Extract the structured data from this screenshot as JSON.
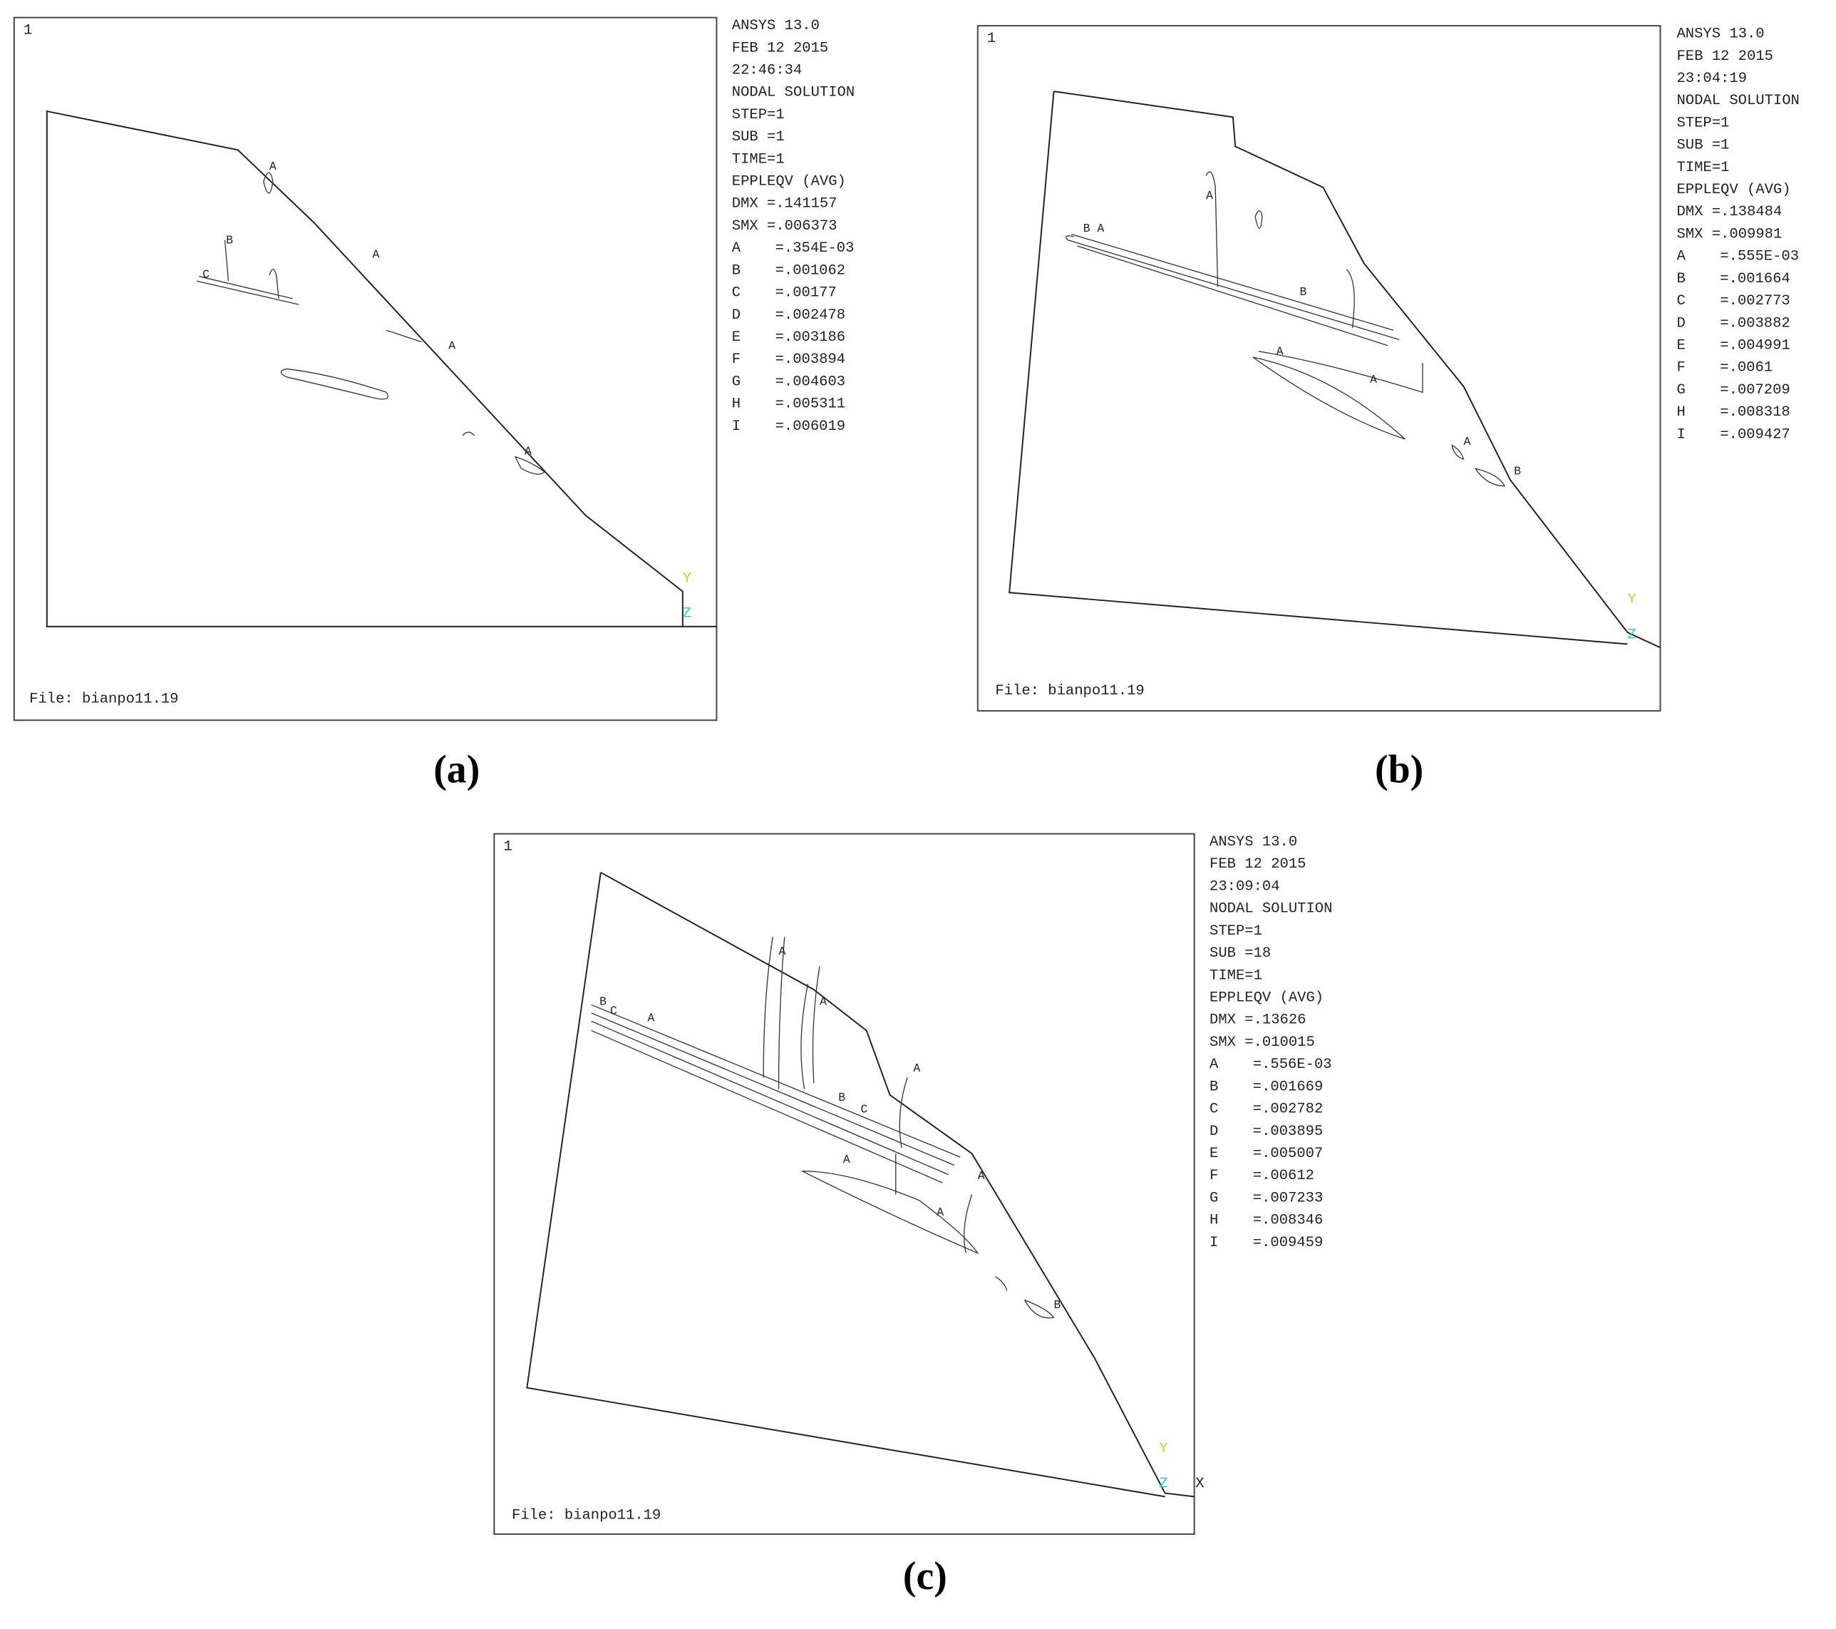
{
  "panels": [
    {
      "corner": "1",
      "info": [
        "ANSYS 13.0",
        "FEB 12 2015",
        "22:46:34",
        "NODAL SOLUTION",
        "STEP=1",
        "SUB =1",
        "TIME=1",
        "EPPLEQV  (AVG)",
        "DMX =.141157",
        "SMX =.006373"
      ],
      "legend": [
        {
          "key": "A",
          "value": "=.354E-03"
        },
        {
          "key": "B",
          "value": "=.001062"
        },
        {
          "key": "C",
          "value": "=.00177"
        },
        {
          "key": "D",
          "value": "=.002478"
        },
        {
          "key": "E",
          "value": "=.003186"
        },
        {
          "key": "F",
          "value": "=.003894"
        },
        {
          "key": "G",
          "value": "=.004603"
        },
        {
          "key": "H",
          "value": "=.005311"
        },
        {
          "key": "I",
          "value": "=.006019"
        }
      ],
      "axes": [
        "Y",
        "Z"
      ],
      "contour_labels": [
        "A",
        "A",
        "B",
        "C",
        "A",
        "A"
      ],
      "file": "File: bianpo11.19",
      "caption": "(a)"
    },
    {
      "corner": "1",
      "info": [
        "ANSYS 13.0",
        "FEB 12 2015",
        "23:04:19",
        "NODAL SOLUTION",
        "STEP=1",
        "SUB =1",
        "TIME=1",
        "EPPLEQV  (AVG)",
        "DMX =.138484",
        "SMX =.009981"
      ],
      "legend": [
        {
          "key": "A",
          "value": "=.555E-03"
        },
        {
          "key": "B",
          "value": "=.001664"
        },
        {
          "key": "C",
          "value": "=.002773"
        },
        {
          "key": "D",
          "value": "=.003882"
        },
        {
          "key": "E",
          "value": "=.004991"
        },
        {
          "key": "F",
          "value": "=.0061"
        },
        {
          "key": "G",
          "value": "=.007209"
        },
        {
          "key": "H",
          "value": "=.008318"
        },
        {
          "key": "I",
          "value": "=.009427"
        }
      ],
      "axes": [
        "Y",
        "Z"
      ],
      "contour_labels": [
        "B",
        "A",
        "A",
        "B",
        "A",
        "A",
        "B",
        "A"
      ],
      "file": "File: bianpo11.19",
      "caption": "(b)"
    },
    {
      "corner": "1",
      "info": [
        "ANSYS 13.0",
        "FEB 12 2015",
        "23:09:04",
        "NODAL SOLUTION",
        "STEP=1",
        "SUB =18",
        "TIME=1",
        "EPPLEQV  (AVG)",
        "DMX =.13626",
        "SMX =.010015"
      ],
      "legend": [
        {
          "key": "A",
          "value": "=.556E-03"
        },
        {
          "key": "B",
          "value": "=.001669"
        },
        {
          "key": "C",
          "value": "=.002782"
        },
        {
          "key": "D",
          "value": "=.003895"
        },
        {
          "key": "E",
          "value": "=.005007"
        },
        {
          "key": "F",
          "value": "=.00612"
        },
        {
          "key": "G",
          "value": "=.007233"
        },
        {
          "key": "H",
          "value": "=.008346"
        },
        {
          "key": "I",
          "value": "=.009459"
        }
      ],
      "axes": [
        "Y",
        "Z",
        "X"
      ],
      "contour_labels": [
        "B",
        "C",
        "A",
        "A",
        "A",
        "B",
        "C",
        "A",
        "A",
        "A",
        "A",
        "B"
      ],
      "file": "File: bianpo11.19",
      "caption": "(c)"
    }
  ]
}
